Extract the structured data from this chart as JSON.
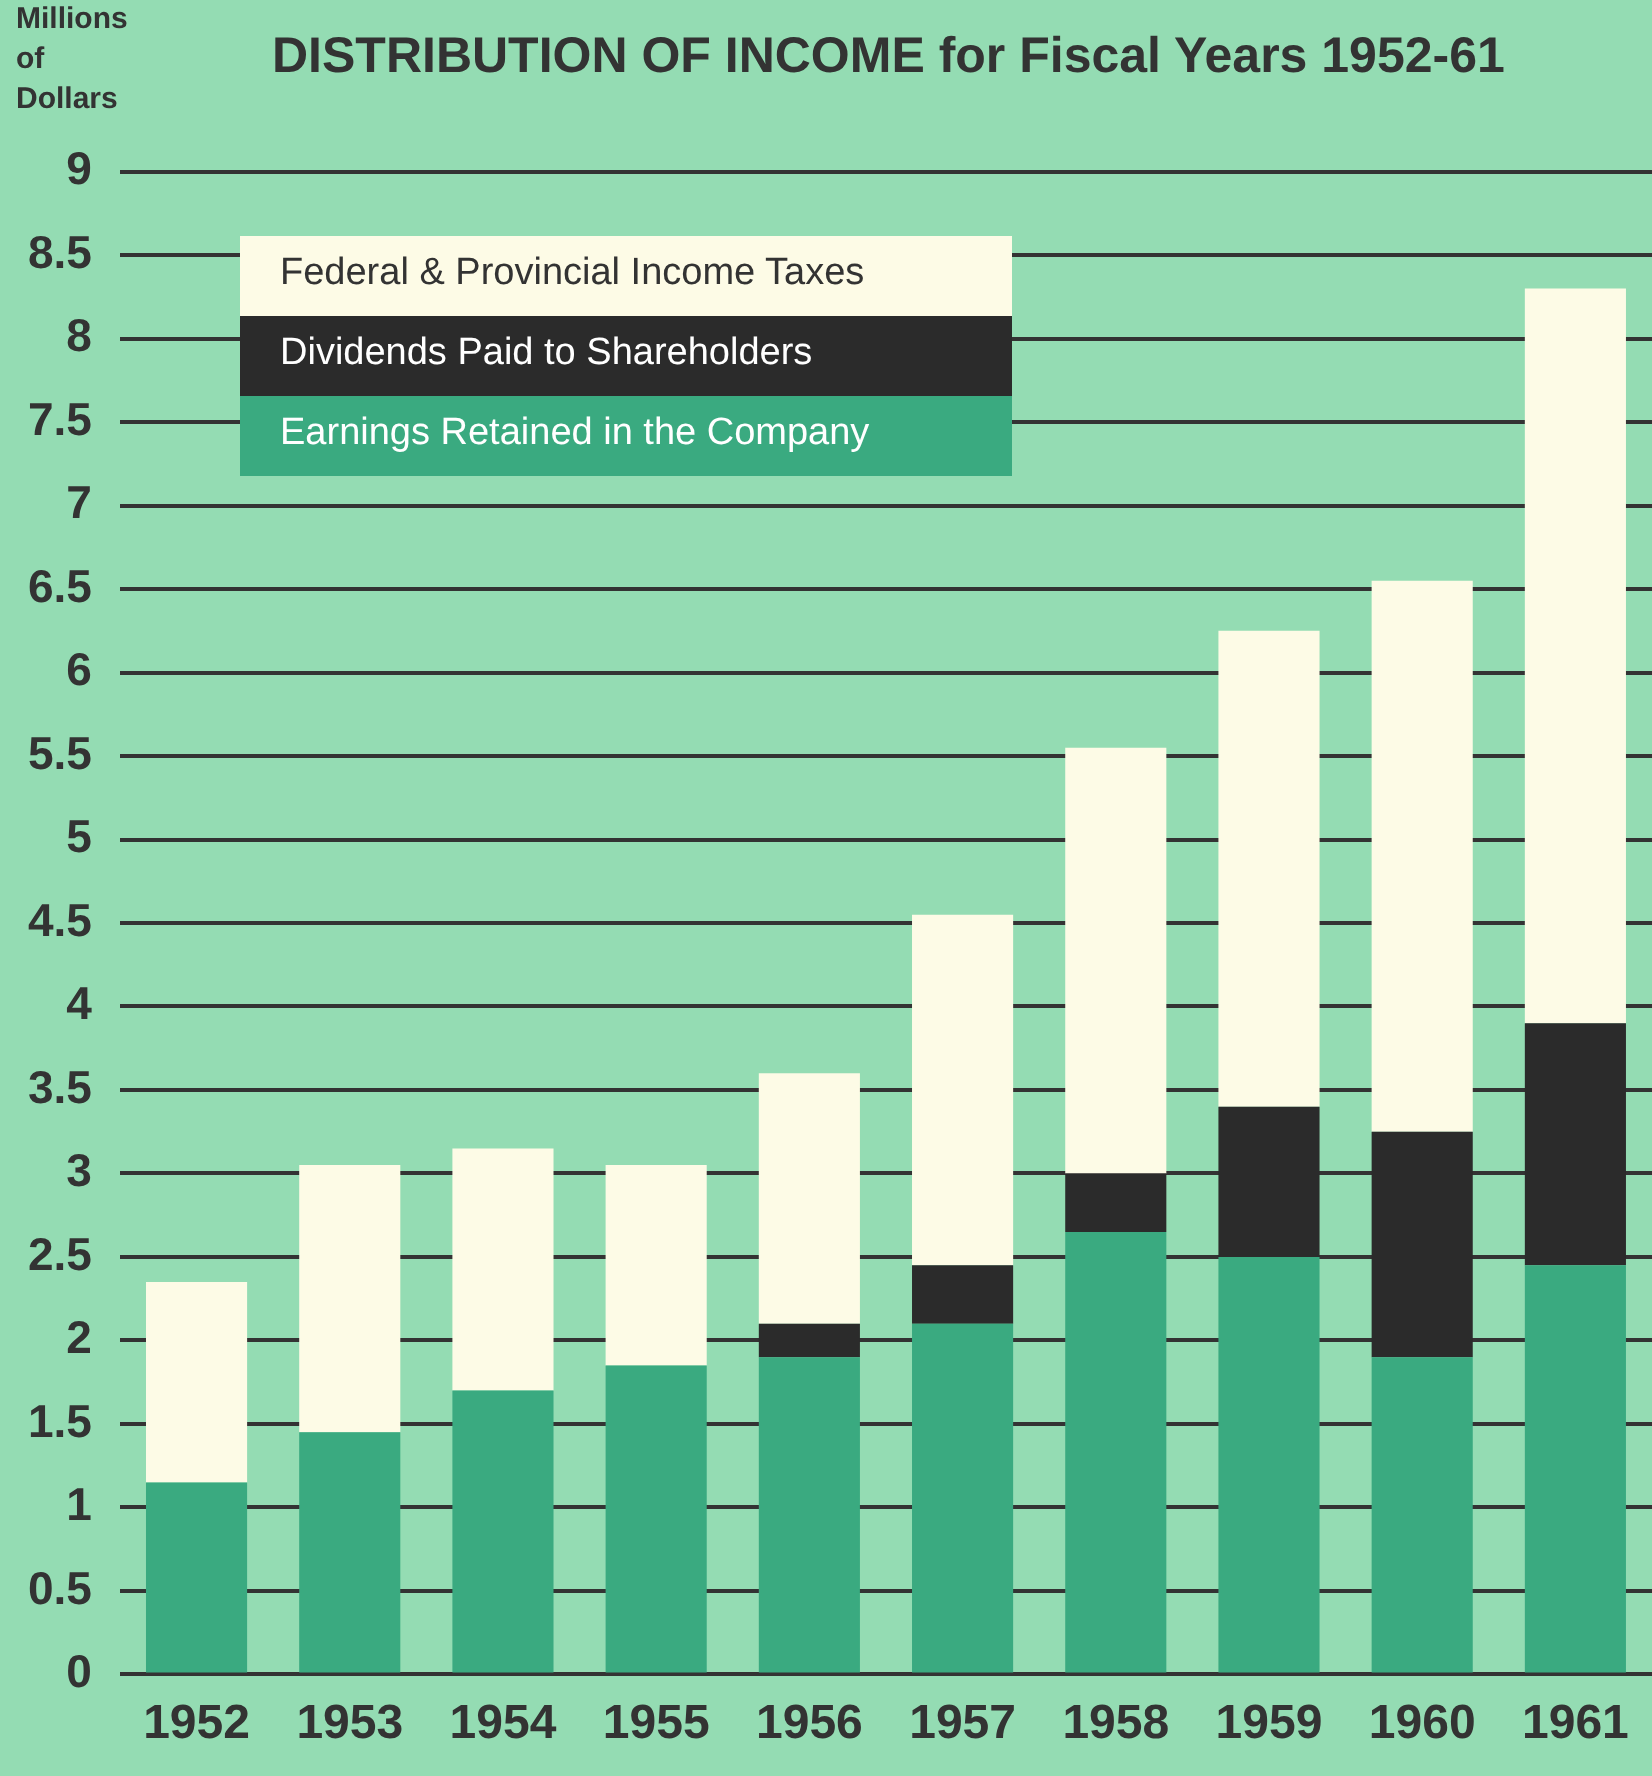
{
  "chart_data": {
    "type": "bar",
    "title": "DISTRIBUTION OF INCOME for Fiscal Years 1952-61",
    "ylabel": "Millions of Dollars",
    "categories": [
      "1952",
      "1953",
      "1954",
      "1955",
      "1956",
      "1957",
      "1958",
      "1959",
      "1960",
      "1961"
    ],
    "stacked": true,
    "series": [
      {
        "name": "Earnings Retained in the Company",
        "color": "#3aaa80",
        "values": [
          1.15,
          1.45,
          1.7,
          1.85,
          1.9,
          2.1,
          2.65,
          2.5,
          1.9,
          2.45
        ]
      },
      {
        "name": "Dividends Paid to Shareholders",
        "color": "#2b2b2b",
        "values": [
          0,
          0,
          0,
          0,
          0.2,
          0.35,
          0.35,
          0.9,
          1.35,
          1.45
        ]
      },
      {
        "name": "Federal & Provincial Income Taxes",
        "color": "#fdfbe6",
        "values": [
          1.2,
          1.6,
          1.45,
          1.2,
          1.5,
          2.1,
          2.55,
          2.85,
          3.3,
          4.4
        ]
      }
    ],
    "ylim": [
      0,
      9
    ],
    "yticks": [
      0,
      0.5,
      1,
      1.5,
      2,
      2.5,
      3,
      3.5,
      4,
      4.5,
      5,
      5.5,
      6,
      6.5,
      7,
      7.5,
      8,
      8.5,
      9
    ],
    "grid": "y",
    "legend": "top left"
  }
}
